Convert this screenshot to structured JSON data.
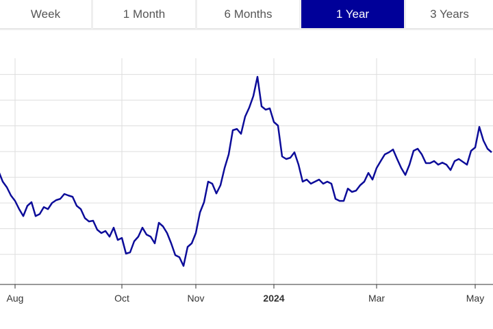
{
  "tabs": [
    "Week",
    "1 Month",
    "6 Months",
    "1 Year",
    "3 Years"
  ],
  "active_tab": 3,
  "chart_data": {
    "type": "line",
    "color": "#0c0c99",
    "categories": [
      null,
      null,
      null,
      null,
      "Aug",
      null,
      null,
      null,
      null,
      null,
      null,
      null,
      null,
      null,
      null,
      null,
      null,
      null,
      null,
      null,
      null,
      null,
      null,
      null,
      null,
      null,
      null,
      null,
      null,
      null,
      "Oct",
      null,
      null,
      null,
      null,
      null,
      null,
      null,
      null,
      null,
      null,
      null,
      null,
      null,
      null,
      null,
      null,
      null,
      "Nov",
      null,
      null,
      null,
      null,
      null,
      null,
      null,
      null,
      null,
      null,
      null,
      null,
      null,
      null,
      null,
      null,
      null,
      null,
      "2024",
      null,
      null,
      null,
      null,
      null,
      null,
      null,
      null,
      null,
      null,
      null,
      null,
      null,
      null,
      null,
      null,
      null,
      null,
      null,
      null,
      null,
      null,
      null,
      null,
      "Mar",
      null,
      null,
      null,
      null,
      null,
      null,
      null,
      null,
      null,
      null,
      null,
      null,
      null,
      null,
      null,
      null,
      null,
      null,
      null,
      null,
      null,
      null,
      null,
      "May",
      null,
      null,
      null,
      null
    ],
    "values": [
      4.23,
      3.83,
      3.61,
      3.29,
      3.08,
      2.76,
      2.49,
      2.89,
      3.03,
      2.49,
      2.57,
      2.84,
      2.76,
      3.0,
      3.11,
      3.16,
      3.35,
      3.29,
      3.24,
      2.89,
      2.76,
      2.41,
      2.28,
      2.31,
      1.96,
      1.83,
      1.91,
      1.69,
      2.04,
      1.56,
      1.64,
      1.03,
      1.08,
      1.51,
      1.69,
      2.04,
      1.77,
      1.69,
      1.43,
      2.23,
      2.09,
      1.83,
      1.43,
      0.97,
      0.89,
      0.55,
      1.29,
      1.43,
      1.83,
      2.63,
      3.03,
      3.83,
      3.75,
      3.37,
      3.69,
      4.36,
      4.89,
      5.83,
      5.88,
      5.69,
      6.36,
      6.71,
      7.16,
      7.91,
      6.76,
      6.63,
      6.68,
      6.15,
      6.01,
      4.81,
      4.71,
      4.76,
      4.97,
      4.49,
      3.83,
      3.91,
      3.75,
      3.83,
      3.91,
      3.75,
      3.83,
      3.75,
      3.16,
      3.08,
      3.08,
      3.56,
      3.43,
      3.48,
      3.69,
      3.83,
      4.17,
      3.91,
      4.36,
      4.63,
      4.89,
      4.97,
      5.08,
      4.71,
      4.36,
      4.09,
      4.49,
      5.03,
      5.11,
      4.89,
      4.55,
      4.55,
      4.63,
      4.49,
      4.57,
      4.49,
      4.28,
      4.63,
      4.71,
      4.6,
      4.49,
      5.03,
      5.16,
      5.96,
      5.43,
      5.11,
      4.97
    ],
    "ylim": [
      -0.17,
      8.63
    ],
    "yticks": [
      1,
      2,
      3,
      4,
      5,
      6,
      7,
      8
    ],
    "grid": true
  }
}
